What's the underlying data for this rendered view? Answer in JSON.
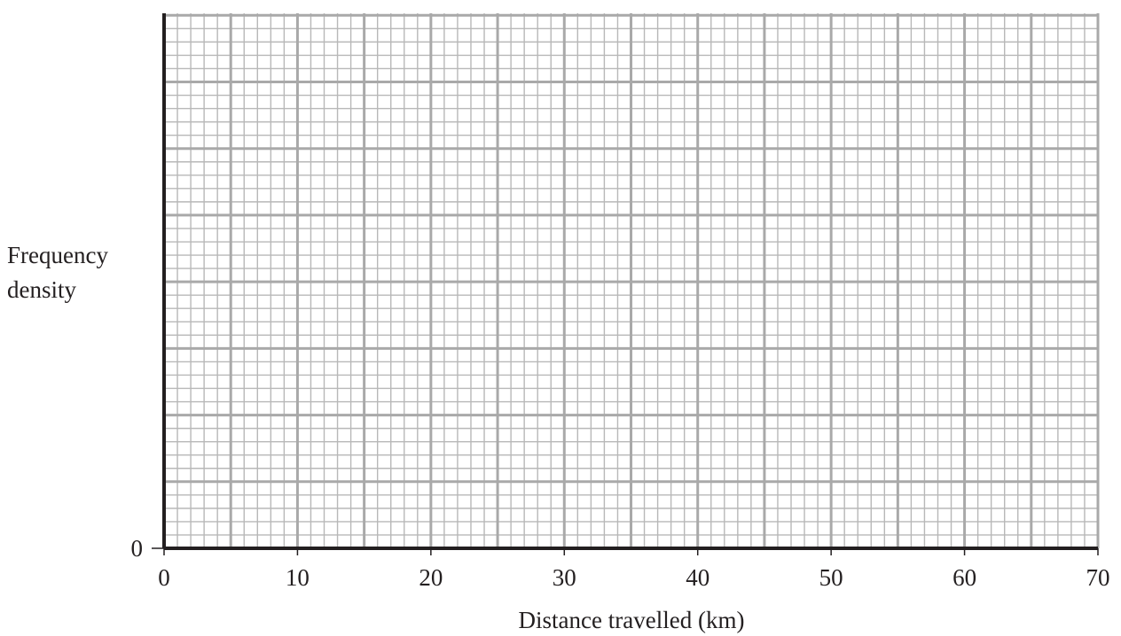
{
  "chart_data": {
    "type": "bar",
    "title": "",
    "xlabel": "Distance travelled (km)",
    "ylabel_lines": [
      "Frequency",
      "density"
    ],
    "xlim": [
      0,
      70
    ],
    "x_ticks": [
      0,
      10,
      20,
      30,
      40,
      50,
      60,
      70
    ],
    "x_tick_labels": [
      "0",
      "10",
      "20",
      "30",
      "40",
      "50",
      "60",
      "70"
    ],
    "y_tick_labels": [
      "0"
    ],
    "categories": [],
    "values": [],
    "grid": true,
    "grid_major_x_step": 5,
    "grid_minor_x_step": 1,
    "colors": {
      "grid_minor": "#b8b8b8",
      "grid_major": "#a9a9a9",
      "axis": "#231f20",
      "text": "#231f20"
    }
  }
}
